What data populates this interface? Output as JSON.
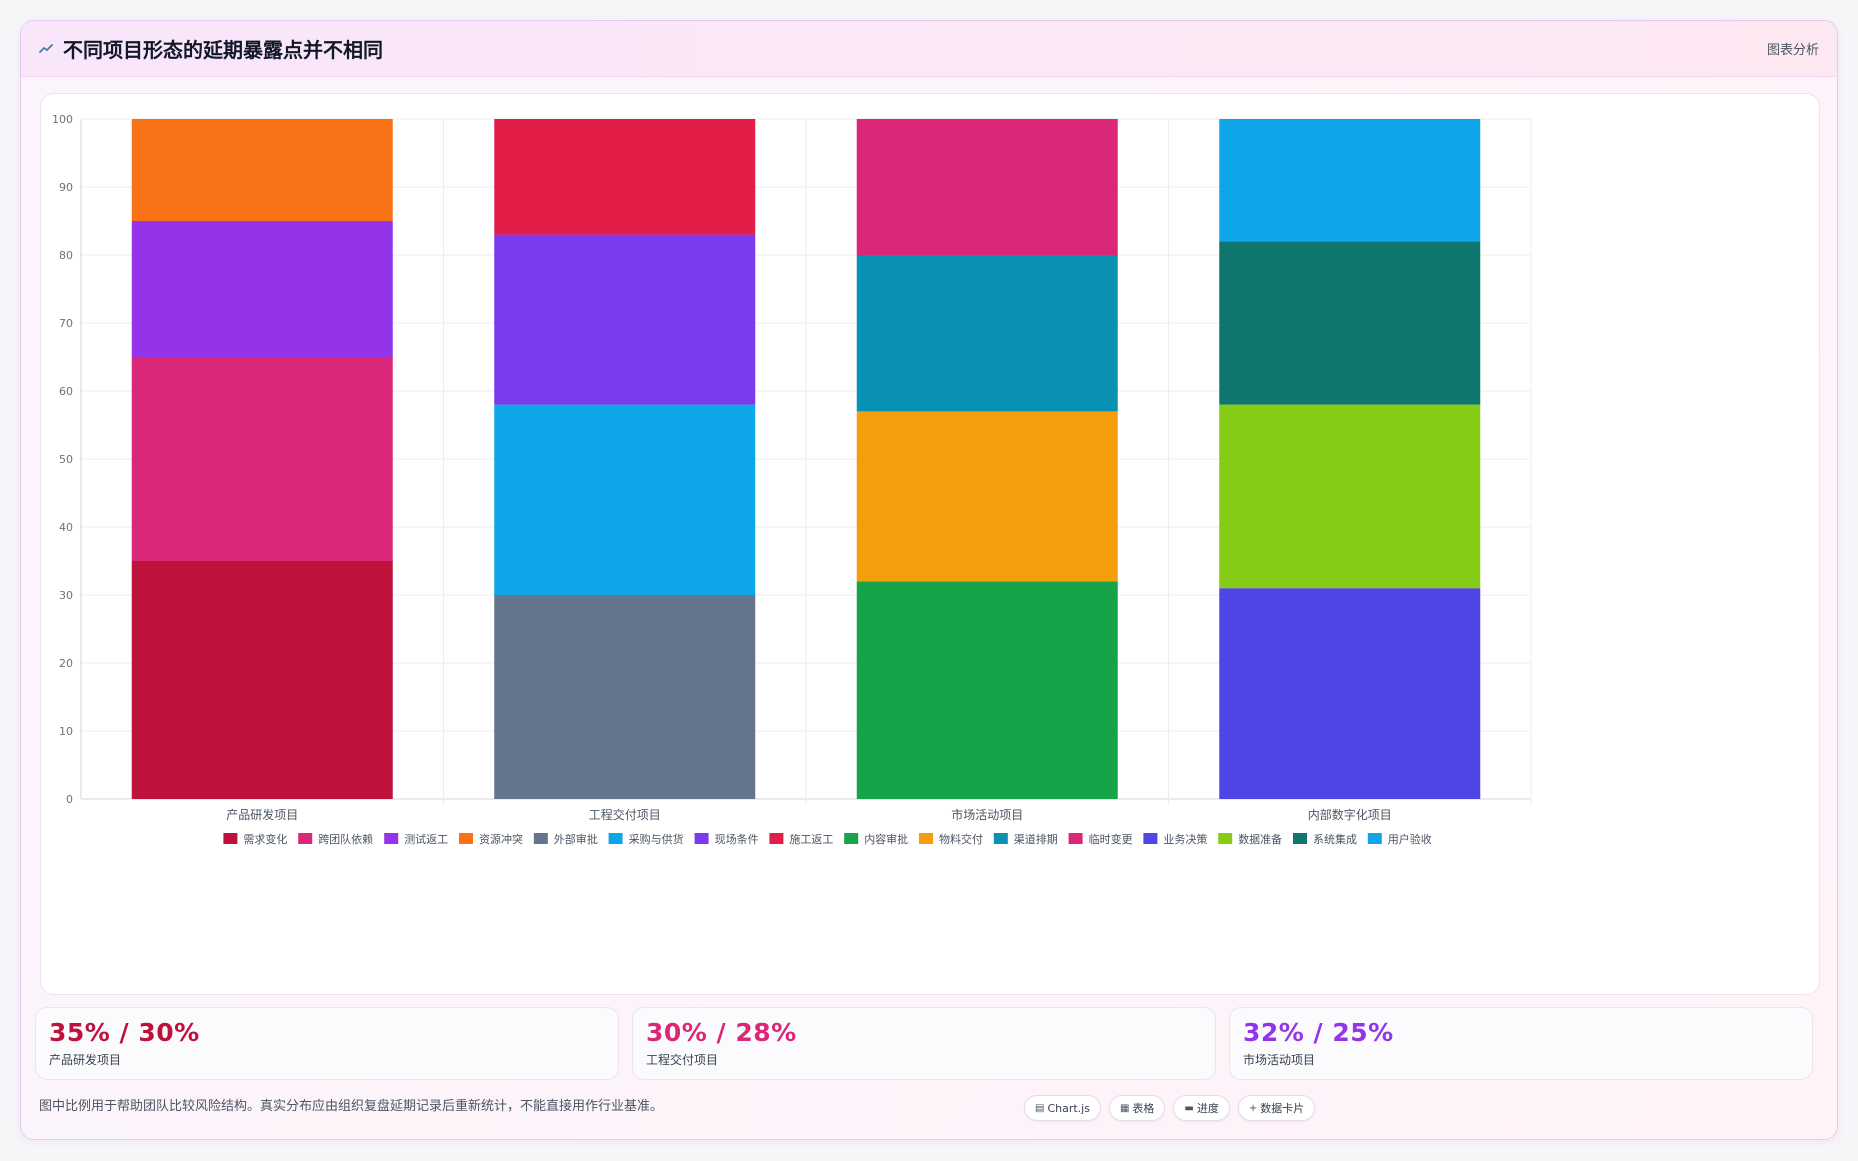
{
  "header": {
    "icon": "chart-trend-icon",
    "title": "不同项目形态的延期暴露点并不相同",
    "right_label": "图表分析"
  },
  "chart_data": {
    "type": "bar",
    "stacked": true,
    "categories": [
      "产品研发项目",
      "工程交付项目",
      "市场活动项目",
      "内部数字化项目"
    ],
    "ylim": [
      0,
      100
    ],
    "yticks": [
      0,
      10,
      20,
      30,
      40,
      50,
      60,
      70,
      80,
      90,
      100
    ],
    "grid": true,
    "legend_position": "bottom",
    "series": [
      {
        "name": "需求变化",
        "color": "#be123c",
        "values": [
          35,
          0,
          0,
          0
        ]
      },
      {
        "name": "跨团队依赖",
        "color": "#db2777",
        "values": [
          30,
          0,
          0,
          0
        ]
      },
      {
        "name": "测试返工",
        "color": "#9333ea",
        "values": [
          20,
          0,
          0,
          0
        ]
      },
      {
        "name": "资源冲突",
        "color": "#f97316",
        "values": [
          15,
          0,
          0,
          0
        ]
      },
      {
        "name": "外部审批",
        "color": "#64748b",
        "values": [
          0,
          30,
          0,
          0
        ]
      },
      {
        "name": "采购与供货",
        "color": "#0ea5e9",
        "values": [
          0,
          28,
          0,
          0
        ]
      },
      {
        "name": "现场条件",
        "color": "#7c3aed",
        "values": [
          0,
          25,
          0,
          0
        ]
      },
      {
        "name": "施工返工",
        "color": "#e11d48",
        "values": [
          0,
          17,
          0,
          0
        ]
      },
      {
        "name": "内容审批",
        "color": "#16a34a",
        "values": [
          0,
          0,
          32,
          0
        ]
      },
      {
        "name": "物料交付",
        "color": "#f59e0b",
        "values": [
          0,
          0,
          25,
          0
        ]
      },
      {
        "name": "渠道排期",
        "color": "#0891b2",
        "values": [
          0,
          0,
          23,
          0
        ]
      },
      {
        "name": "临时变更",
        "color": "#db2777",
        "values": [
          0,
          0,
          20,
          0
        ]
      },
      {
        "name": "业务决策",
        "color": "#4f46e5",
        "values": [
          0,
          0,
          0,
          31
        ]
      },
      {
        "name": "数据准备",
        "color": "#84cc16",
        "values": [
          0,
          0,
          0,
          27
        ]
      },
      {
        "name": "系统集成",
        "color": "#0f766e",
        "values": [
          0,
          0,
          0,
          24
        ]
      },
      {
        "name": "用户验收",
        "color": "#0ea5e9",
        "values": [
          0,
          0,
          0,
          18
        ]
      }
    ]
  },
  "stats": [
    {
      "value": "35% / 30%",
      "label": "产品研发项目",
      "color": "#be123c"
    },
    {
      "value": "30% / 28%",
      "label": "工程交付项目",
      "color": "#db2777"
    },
    {
      "value": "32% / 25%",
      "label": "市场活动项目",
      "color": "#9333ea"
    }
  ],
  "footer": {
    "note": "图中比例用于帮助团队比较风险结构。真实分布应由组织复盘延期记录后重新统计，不能直接用作行业基准。"
  },
  "chips": [
    {
      "icon": "chart-icon",
      "label": "Chart.js"
    },
    {
      "icon": "table-icon",
      "label": "表格"
    },
    {
      "icon": "progress-icon",
      "label": "进度"
    },
    {
      "icon": "card-icon",
      "label": "数据卡片"
    }
  ]
}
